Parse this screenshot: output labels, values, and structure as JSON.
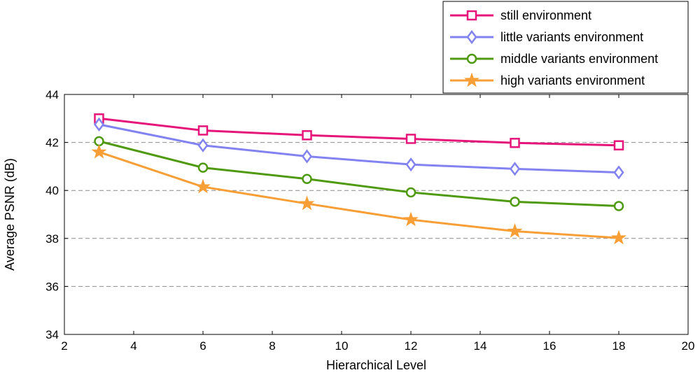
{
  "chart_data": {
    "type": "line",
    "title": "",
    "xlabel": "Hierarchical Level",
    "ylabel": "Average PSNR (dB)",
    "xlim": [
      2,
      20
    ],
    "ylim": [
      34,
      44
    ],
    "xticks": [
      "2",
      "4",
      "6",
      "8",
      "10",
      "12",
      "14",
      "16",
      "18",
      "20"
    ],
    "yticks": [
      "34",
      "36",
      "38",
      "40",
      "42",
      "44"
    ],
    "grid": "horizontal-dashed",
    "legend_position": "top-right",
    "x": [
      3,
      6,
      9,
      12,
      15,
      18
    ],
    "series": [
      {
        "name": "still environment",
        "color": "#e5157a",
        "marker": "square",
        "values": [
          43.0,
          42.5,
          42.3,
          42.15,
          41.98,
          41.88
        ]
      },
      {
        "name": "little variants environment",
        "color": "#8282f0",
        "marker": "diamond",
        "values": [
          42.75,
          41.88,
          41.42,
          41.08,
          40.9,
          40.75
        ]
      },
      {
        "name": "middle variants environment",
        "color": "#4f9a10",
        "marker": "circle",
        "values": [
          42.05,
          40.95,
          40.48,
          39.92,
          39.53,
          39.35
        ]
      },
      {
        "name": "high variants environment",
        "color": "#f79f36",
        "marker": "star",
        "values": [
          41.6,
          40.15,
          39.45,
          38.78,
          38.3,
          38.02
        ]
      }
    ]
  }
}
